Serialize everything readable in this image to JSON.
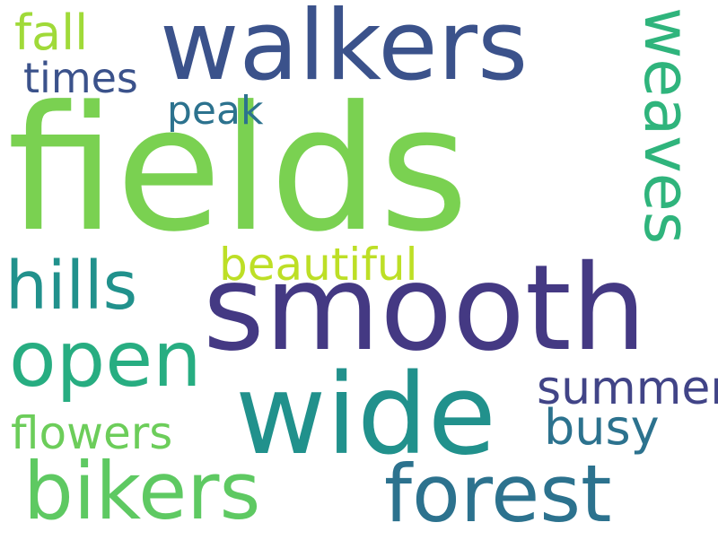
{
  "words": {
    "fields": {
      "text": "fields",
      "color": "#7ad151"
    },
    "smooth": {
      "text": "smooth",
      "color": "#443983"
    },
    "walkers": {
      "text": "walkers",
      "color": "#3b528b"
    },
    "wide": {
      "text": "wide",
      "color": "#21918c"
    },
    "forest": {
      "text": "forest",
      "color": "#2c728e"
    },
    "bikers": {
      "text": "bikers",
      "color": "#5ec962"
    },
    "open": {
      "text": "open",
      "color": "#27ad81"
    },
    "hills": {
      "text": "hills",
      "color": "#21918c"
    },
    "weaves": {
      "text": "weaves",
      "color": "#2fb47c"
    },
    "beautiful": {
      "text": "beautiful",
      "color": "#bddf26"
    },
    "summer": {
      "text": "summer",
      "color": "#414487"
    },
    "busy": {
      "text": "busy",
      "color": "#2c728e"
    },
    "flowers": {
      "text": "flowers",
      "color": "#6ccd5a"
    },
    "peak": {
      "text": "peak",
      "color": "#2c728e"
    },
    "times": {
      "text": "times",
      "color": "#3b528b"
    },
    "fall": {
      "text": "fall",
      "color": "#a0da39"
    }
  }
}
